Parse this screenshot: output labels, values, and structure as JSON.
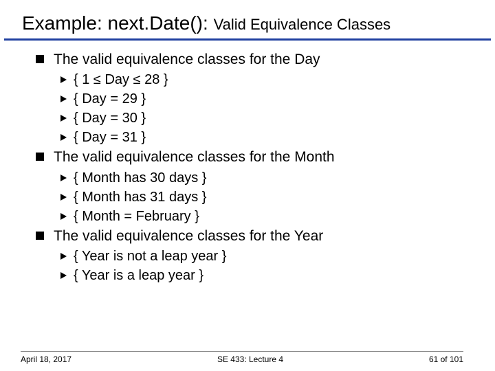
{
  "title": {
    "main": "Example: next.Date():",
    "sub": "Valid Equivalence Classes",
    "main_fontsize": 28,
    "sub_fontsize": 22,
    "divider_color": "#1f3fa0",
    "divider_height": 3
  },
  "sections": [
    {
      "heading": "The valid equivalence classes for the Day",
      "items": [
        "{ 1 ≤ Day ≤ 28 }",
        "{ Day = 29 }",
        "{ Day = 30 }",
        "{ Day = 31 }"
      ]
    },
    {
      "heading": "The valid equivalence classes for the Month",
      "items": [
        "{ Month has 30 days }",
        "{ Month has 31 days }",
        "{ Month = February }"
      ]
    },
    {
      "heading": "The valid equivalence classes for the Year",
      "items": [
        "{ Year is not a leap year }",
        "{ Year is a leap year }"
      ]
    }
  ],
  "footer": {
    "date": "April 18, 2017",
    "course": "SE 433: Lecture 4",
    "page": "61 of 101",
    "divider_color": "#888888",
    "fontsize": 12
  },
  "style": {
    "background_color": "#ffffff",
    "text_color": "#000000",
    "l1_fontsize": 21,
    "l2_fontsize": 20,
    "l1_marker": "square",
    "l2_marker": "triangle-right"
  }
}
